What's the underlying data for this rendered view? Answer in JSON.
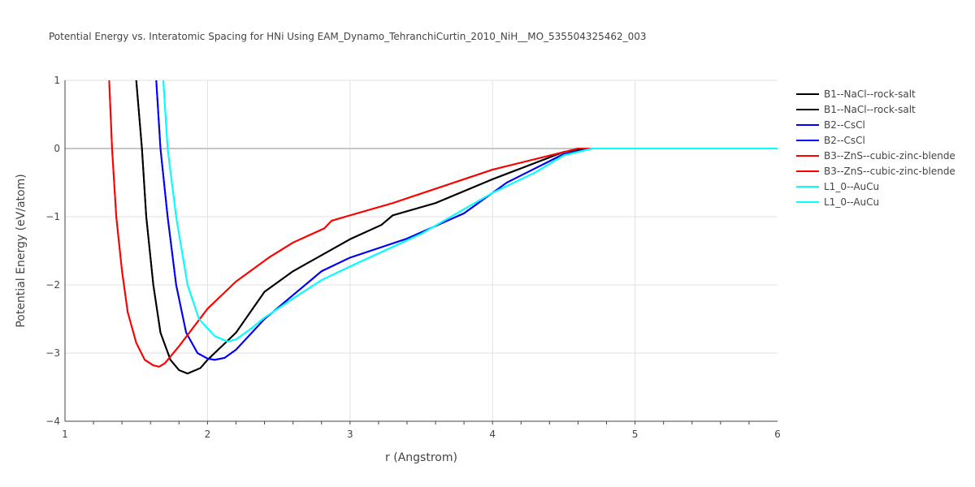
{
  "chart_data": {
    "type": "line",
    "title": "Potential Energy vs. Interatomic Spacing for HNi Using EAM_Dynamo_TehranchiCurtin_2010_NiH__MO_535504325462_003",
    "xlabel": "r (Angstrom)",
    "ylabel": "Potential Energy (eV/atom)",
    "xlim": [
      1,
      6
    ],
    "ylim": [
      -4,
      1
    ],
    "xticks": [
      "1",
      "2",
      "3",
      "4",
      "5",
      "6"
    ],
    "yticks": [
      "1",
      "0",
      "−1",
      "−2",
      "−3",
      "−4"
    ],
    "grid": true,
    "legend_position": "right",
    "series": [
      {
        "name": "B1--NaCl--rock-salt",
        "color": "#000000",
        "x": [
          1.5,
          1.54,
          1.57,
          1.62,
          1.67,
          1.74,
          1.8,
          1.86,
          1.95,
          2.0,
          2.2,
          2.4,
          2.6,
          3.0,
          3.22,
          3.3,
          3.6,
          4.0,
          4.5,
          4.65,
          6.0
        ],
        "y": [
          1,
          0,
          -1,
          -2,
          -2.7,
          -3.1,
          -3.25,
          -3.3,
          -3.22,
          -3.1,
          -2.7,
          -2.1,
          -1.8,
          -1.33,
          -1.12,
          -0.98,
          -0.8,
          -0.45,
          -0.05,
          0,
          0
        ]
      },
      {
        "name": "B1--NaCl--rock-salt",
        "color": "#000000",
        "x": [
          1.5,
          1.54,
          1.57,
          1.62,
          1.67,
          1.74,
          1.8,
          1.86,
          1.95,
          2.0,
          2.2,
          2.4,
          2.6,
          3.0,
          3.22,
          3.3,
          3.6,
          4.0,
          4.5,
          4.65,
          6.0
        ],
        "y": [
          1,
          0,
          -1,
          -2,
          -2.7,
          -3.1,
          -3.25,
          -3.3,
          -3.22,
          -3.1,
          -2.7,
          -2.1,
          -1.8,
          -1.33,
          -1.12,
          -0.98,
          -0.8,
          -0.45,
          -0.05,
          0,
          0
        ]
      },
      {
        "name": "B2--CsCl",
        "color": "#0000ff",
        "x": [
          1.64,
          1.67,
          1.72,
          1.78,
          1.85,
          1.93,
          2.0,
          2.05,
          2.12,
          2.2,
          2.4,
          2.6,
          2.8,
          3.0,
          3.4,
          3.8,
          4.1,
          4.5,
          4.7,
          6.0
        ],
        "y": [
          1,
          0,
          -1,
          -2,
          -2.7,
          -3.0,
          -3.08,
          -3.1,
          -3.07,
          -2.95,
          -2.5,
          -2.15,
          -1.8,
          -1.6,
          -1.32,
          -0.95,
          -0.5,
          -0.08,
          0,
          0
        ]
      },
      {
        "name": "B2--CsCl",
        "color": "#0000ff",
        "x": [
          1.64,
          1.67,
          1.72,
          1.78,
          1.85,
          1.93,
          2.0,
          2.05,
          2.12,
          2.2,
          2.4,
          2.6,
          2.8,
          3.0,
          3.4,
          3.8,
          4.1,
          4.5,
          4.7,
          6.0
        ],
        "y": [
          1,
          0,
          -1,
          -2,
          -2.7,
          -3.0,
          -3.08,
          -3.1,
          -3.07,
          -2.95,
          -2.5,
          -2.15,
          -1.8,
          -1.6,
          -1.32,
          -0.95,
          -0.5,
          -0.08,
          0,
          0
        ]
      },
      {
        "name": "B3--ZnS--cubic-zinc-blende",
        "color": "#ff0000",
        "x": [
          1.31,
          1.33,
          1.36,
          1.4,
          1.44,
          1.5,
          1.56,
          1.62,
          1.66,
          1.7,
          1.8,
          2.0,
          2.2,
          2.43,
          2.6,
          2.82,
          2.87,
          3.0,
          3.3,
          4.0,
          4.6,
          6.0
        ],
        "y": [
          1,
          0,
          -1,
          -1.8,
          -2.4,
          -2.85,
          -3.1,
          -3.18,
          -3.2,
          -3.15,
          -2.9,
          -2.35,
          -1.95,
          -1.6,
          -1.38,
          -1.17,
          -1.06,
          -0.98,
          -0.8,
          -0.31,
          0,
          0
        ]
      },
      {
        "name": "B3--ZnS--cubic-zinc-blende",
        "color": "#ff0000",
        "x": [
          1.31,
          1.33,
          1.36,
          1.4,
          1.44,
          1.5,
          1.56,
          1.62,
          1.66,
          1.7,
          1.8,
          2.0,
          2.2,
          2.43,
          2.6,
          2.82,
          2.87,
          3.0,
          3.3,
          4.0,
          4.6,
          6.0
        ],
        "y": [
          1,
          0,
          -1,
          -1.8,
          -2.4,
          -2.85,
          -3.1,
          -3.18,
          -3.2,
          -3.15,
          -2.9,
          -2.35,
          -1.95,
          -1.6,
          -1.38,
          -1.17,
          -1.06,
          -0.98,
          -0.8,
          -0.31,
          0,
          0
        ]
      },
      {
        "name": "L1_0--AuCu",
        "color": "#00ffff",
        "x": [
          1.69,
          1.72,
          1.78,
          1.86,
          1.94,
          2.05,
          2.14,
          2.2,
          2.3,
          2.4,
          2.6,
          2.8,
          3.0,
          3.5,
          4.0,
          4.3,
          4.5,
          4.7,
          6.0
        ],
        "y": [
          1,
          0,
          -1,
          -2,
          -2.5,
          -2.75,
          -2.83,
          -2.8,
          -2.65,
          -2.48,
          -2.2,
          -1.93,
          -1.73,
          -1.25,
          -0.65,
          -0.35,
          -0.1,
          0,
          0
        ]
      },
      {
        "name": "L1_0--AuCu",
        "color": "#00ffff",
        "x": [
          1.69,
          1.72,
          1.78,
          1.86,
          1.94,
          2.05,
          2.14,
          2.2,
          2.3,
          2.4,
          2.6,
          2.8,
          3.0,
          3.5,
          4.0,
          4.3,
          4.5,
          4.7,
          6.0
        ],
        "y": [
          1,
          0,
          -1,
          -2,
          -2.5,
          -2.75,
          -2.83,
          -2.8,
          -2.65,
          -2.48,
          -2.2,
          -1.93,
          -1.73,
          -1.25,
          -0.65,
          -0.35,
          -0.1,
          0,
          0
        ]
      }
    ]
  }
}
